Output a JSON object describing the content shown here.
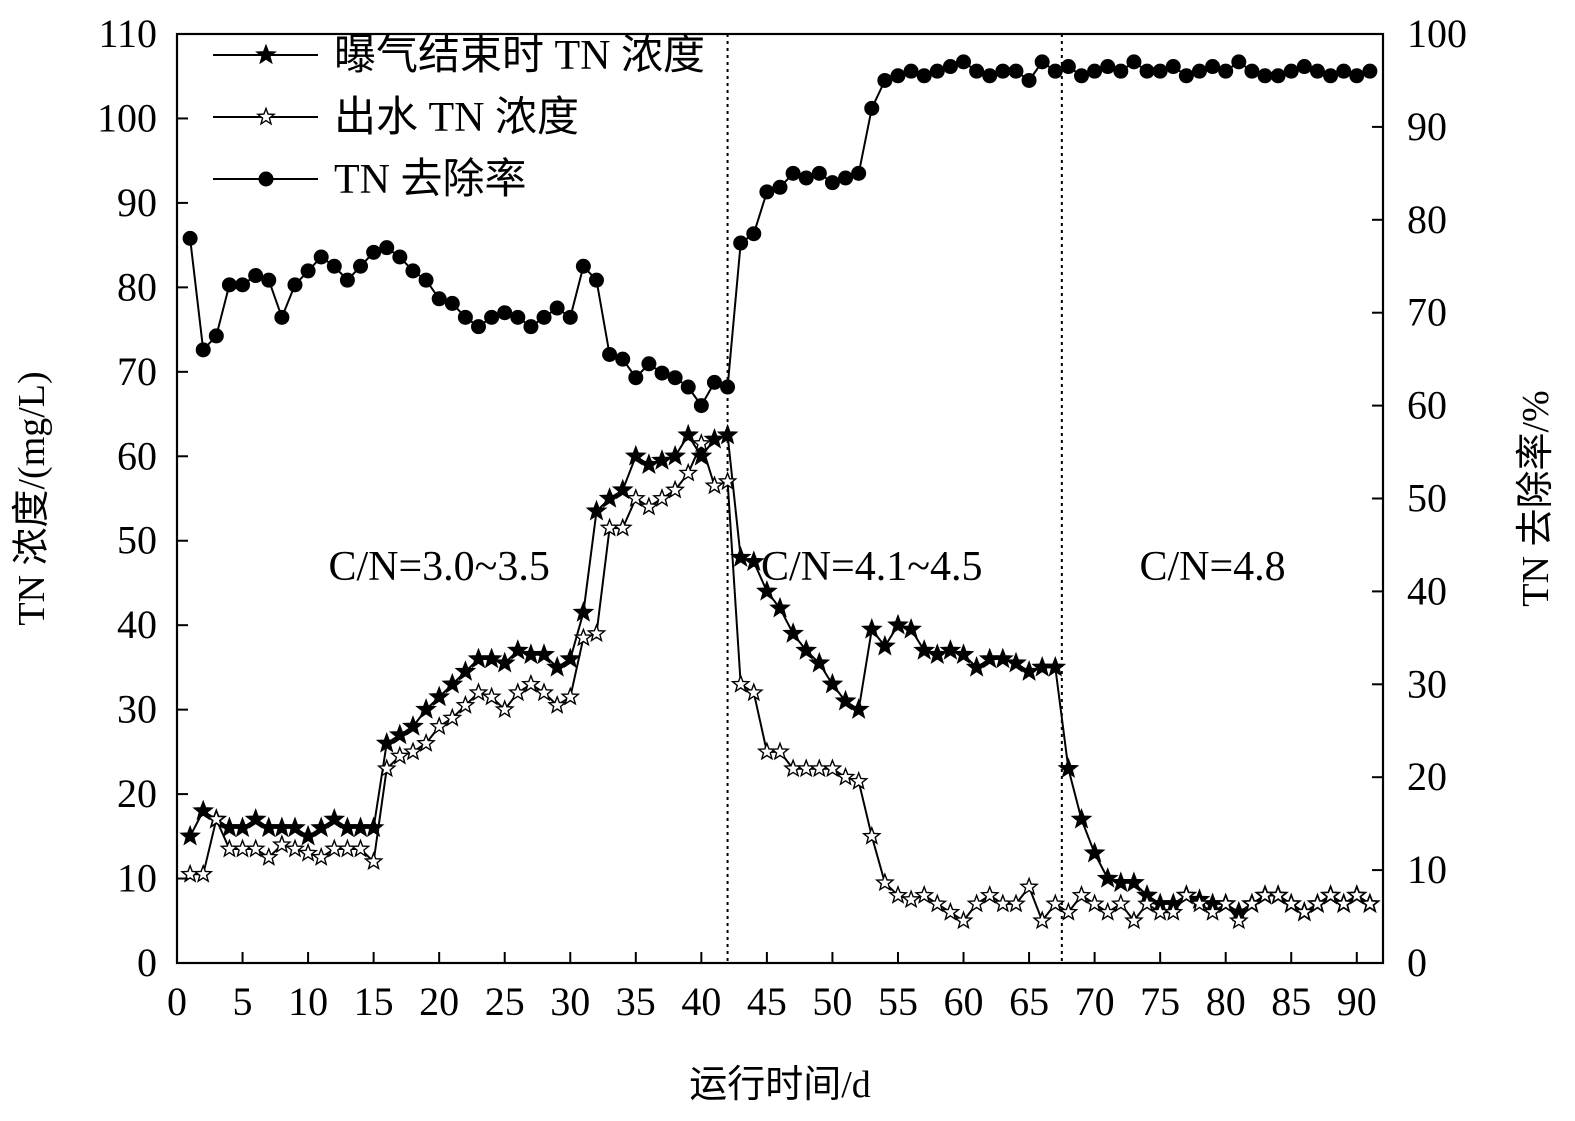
{
  "chart_data": {
    "type": "line",
    "title": "",
    "xlabel": "运行时间/d",
    "ylabel_left": "TN 浓度/(mg/L)",
    "ylabel_right": "TN 去除率/%",
    "xlim": [
      0,
      92
    ],
    "ylim_left": [
      0,
      110
    ],
    "ylim_right": [
      0,
      100
    ],
    "x_ticks": [
      0,
      5,
      10,
      15,
      20,
      25,
      30,
      35,
      40,
      45,
      50,
      55,
      60,
      65,
      70,
      75,
      80,
      85,
      90
    ],
    "y_ticks_left": [
      0,
      10,
      20,
      30,
      40,
      50,
      60,
      70,
      80,
      90,
      100,
      110
    ],
    "y_ticks_right": [
      0,
      10,
      20,
      30,
      40,
      50,
      60,
      70,
      80,
      90,
      100
    ],
    "grid": false,
    "legend_position": "top-left",
    "stage_dividers_x": [
      42,
      67.5
    ],
    "annotations": [
      {
        "text": "C/N=3.0~3.5",
        "x": 20,
        "y": 47
      },
      {
        "text": "C/N=4.1~4.5",
        "x": 53,
        "y": 47
      },
      {
        "text": "C/N=4.8",
        "x": 79,
        "y": 47
      }
    ],
    "series": [
      {
        "name": "曝气结束时 TN 浓度",
        "axis": "left",
        "marker": "filled-star",
        "x": [
          1,
          2,
          3,
          4,
          5,
          6,
          7,
          8,
          9,
          10,
          11,
          12,
          13,
          14,
          15,
          16,
          17,
          18,
          19,
          20,
          21,
          22,
          23,
          24,
          25,
          26,
          27,
          28,
          29,
          30,
          31,
          32,
          33,
          34,
          35,
          36,
          37,
          38,
          39,
          40,
          41,
          42,
          43,
          44,
          45,
          46,
          47,
          48,
          49,
          50,
          51,
          52,
          53,
          54,
          55,
          56,
          57,
          58,
          59,
          60,
          61,
          62,
          63,
          64,
          65,
          66,
          67,
          68,
          69,
          70,
          71,
          72,
          73,
          74,
          75,
          76,
          77,
          78,
          79,
          80,
          81,
          82,
          83,
          84,
          85,
          86,
          87,
          88,
          89,
          90,
          91
        ],
        "values": [
          15,
          18,
          17,
          16,
          16,
          17,
          16,
          16,
          16,
          15,
          16,
          17,
          16,
          16,
          16,
          26,
          27,
          28,
          30,
          31.5,
          33,
          34.5,
          36,
          36,
          35.5,
          37,
          36.5,
          36.5,
          35,
          36,
          41.5,
          53.5,
          55,
          56,
          60,
          59,
          59.5,
          60,
          62.5,
          60,
          62,
          62.5,
          48,
          47.5,
          44,
          42,
          39,
          37,
          35.5,
          33,
          31,
          30,
          39.5,
          37.5,
          40,
          39.5,
          37,
          36.5,
          37,
          36.5,
          35,
          36,
          36,
          35.5,
          34.5,
          35,
          35,
          23,
          17,
          13,
          10,
          9.5,
          9.5,
          8,
          7,
          7,
          8,
          7.5,
          7,
          7,
          6,
          7,
          8,
          8,
          7,
          6,
          7,
          8,
          7,
          8,
          7
        ]
      },
      {
        "name": "出水 TN 浓度",
        "axis": "left",
        "marker": "hollow-star",
        "x": [
          1,
          2,
          3,
          4,
          5,
          6,
          7,
          8,
          9,
          10,
          11,
          12,
          13,
          14,
          15,
          16,
          17,
          18,
          19,
          20,
          21,
          22,
          23,
          24,
          25,
          26,
          27,
          28,
          29,
          30,
          31,
          32,
          33,
          34,
          35,
          36,
          37,
          38,
          39,
          40,
          41,
          42,
          43,
          44,
          45,
          46,
          47,
          48,
          49,
          50,
          51,
          52,
          53,
          54,
          55,
          56,
          57,
          58,
          59,
          60,
          61,
          62,
          63,
          64,
          65,
          66,
          67,
          68,
          69,
          70,
          71,
          72,
          73,
          74,
          75,
          76,
          77,
          78,
          79,
          80,
          81,
          82,
          83,
          84,
          85,
          86,
          87,
          88,
          89,
          90,
          91
        ],
        "values": [
          10.5,
          10.5,
          17,
          13.5,
          13.5,
          13.5,
          12.5,
          14,
          13.5,
          13,
          12.5,
          13.5,
          13.5,
          13.5,
          12,
          23,
          24.5,
          25,
          26,
          28,
          29,
          30.5,
          32,
          31.5,
          30,
          32,
          33,
          32,
          30.5,
          31.5,
          38.5,
          39,
          51.5,
          51.5,
          55,
          54,
          55,
          56,
          58,
          61.5,
          56.5,
          57,
          33,
          32,
          25,
          25,
          23,
          23,
          23,
          23,
          22,
          21.5,
          15,
          9.5,
          8,
          7.5,
          8,
          7,
          6,
          5,
          7,
          8,
          7,
          7,
          9,
          5,
          7,
          6,
          8,
          7,
          6,
          7,
          5,
          7,
          6,
          6,
          8,
          7,
          6,
          7,
          5,
          7,
          8,
          8,
          7,
          6,
          7,
          8,
          7,
          8,
          7
        ]
      },
      {
        "name": "TN 去除率",
        "axis": "right",
        "marker": "filled-circle",
        "x": [
          1,
          2,
          3,
          4,
          5,
          6,
          7,
          8,
          9,
          10,
          11,
          12,
          13,
          14,
          15,
          16,
          17,
          18,
          19,
          20,
          21,
          22,
          23,
          24,
          25,
          26,
          27,
          28,
          29,
          30,
          31,
          32,
          33,
          34,
          35,
          36,
          37,
          38,
          39,
          40,
          41,
          42,
          43,
          44,
          45,
          46,
          47,
          48,
          49,
          50,
          51,
          52,
          53,
          54,
          55,
          56,
          57,
          58,
          59,
          60,
          61,
          62,
          63,
          64,
          65,
          66,
          67,
          68,
          69,
          70,
          71,
          72,
          73,
          74,
          75,
          76,
          77,
          78,
          79,
          80,
          81,
          82,
          83,
          84,
          85,
          86,
          87,
          88,
          89,
          90,
          91
        ],
        "values": [
          78,
          66,
          67.5,
          73,
          73,
          74,
          73.5,
          69.5,
          73,
          74.5,
          76,
          75,
          73.5,
          75,
          76.5,
          77,
          76,
          74.5,
          73.5,
          71.5,
          71,
          69.5,
          68.5,
          69.5,
          70,
          69.5,
          68.5,
          69.5,
          70.5,
          69.5,
          75,
          73.5,
          65.5,
          65,
          63,
          64.5,
          63.5,
          63,
          62,
          60,
          62.5,
          62,
          77.5,
          78.5,
          83,
          83.5,
          85,
          84.5,
          85,
          84,
          84.5,
          85,
          92,
          95,
          95.5,
          96,
          95.5,
          96,
          96.5,
          97,
          96,
          95.5,
          96,
          96,
          95,
          97,
          96,
          96.5,
          95.5,
          96,
          96.5,
          96,
          97,
          96,
          96,
          96.5,
          95.5,
          96,
          96.5,
          96,
          97,
          96,
          95.5,
          95.5,
          96,
          96.5,
          96,
          95.5,
          96,
          95.5,
          96
        ]
      }
    ]
  }
}
